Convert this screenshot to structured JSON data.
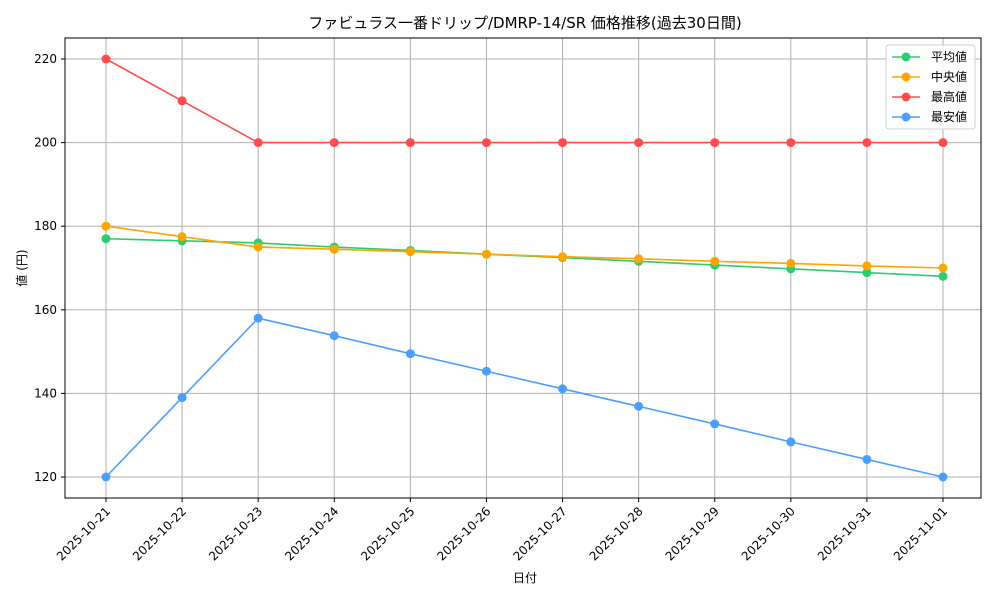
{
  "chart_data": {
    "type": "line",
    "title": "ファビュラス一番ドリップ/DMRP-14/SR 価格推移(過去30日間)",
    "xlabel": "日付",
    "ylabel": "値 (円)",
    "ylim": [
      115,
      225
    ],
    "yticks": [
      120,
      140,
      160,
      180,
      200,
      220
    ],
    "grid": true,
    "legend_position": "upper right",
    "x": [
      "2025-10-21",
      "2025-10-22",
      "2025-10-23",
      "2025-10-24",
      "2025-10-25",
      "2025-10-26",
      "2025-10-27",
      "2025-10-28",
      "2025-10-29",
      "2025-10-30",
      "2025-10-31",
      "2025-11-01"
    ],
    "series": [
      {
        "name": "平均値",
        "color": "#2ecc71",
        "values": [
          177,
          176.5,
          176,
          175,
          174.2,
          173.3,
          172.5,
          171.6,
          170.7,
          169.8,
          168.9,
          168
        ]
      },
      {
        "name": "中央値",
        "color": "#ffa500",
        "values": [
          180,
          177.5,
          175,
          174.5,
          173.9,
          173.3,
          172.7,
          172.2,
          171.6,
          171.1,
          170.5,
          170
        ]
      },
      {
        "name": "最高値",
        "color": "#ff4d4d",
        "values": [
          220,
          210,
          200,
          200,
          200,
          200,
          200,
          200,
          200,
          200,
          200,
          200
        ]
      },
      {
        "name": "最安値",
        "color": "#4d9fff",
        "values": [
          120,
          139,
          158,
          153.8,
          149.5,
          145.3,
          141.1,
          136.9,
          132.7,
          128.4,
          124.2,
          120
        ]
      }
    ]
  }
}
